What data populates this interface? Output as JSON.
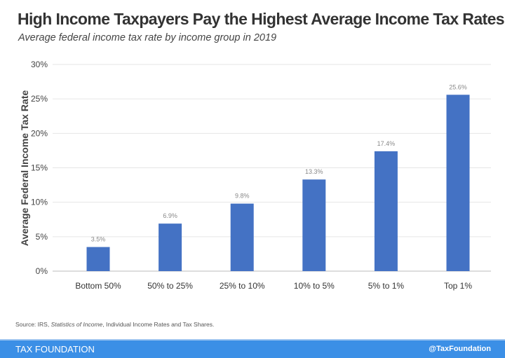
{
  "title": "High Income Taxpayers Pay the Highest Average Income Tax Rates",
  "subtitle": "Average federal income tax rate by income group in 2019",
  "source": {
    "prefix": "Source: IRS, ",
    "italic": "Statistics of Income",
    "suffix": ", Individual Income Rates and Tax Shares."
  },
  "footer": {
    "brand": "TAX FOUNDATION",
    "handle": "@TaxFoundation",
    "color": "#3b8fe6"
  },
  "chart_data": {
    "type": "bar",
    "categories": [
      "Bottom 50%",
      "50% to 25%",
      "25% to 10%",
      "10% to 5%",
      "5% to 1%",
      "Top 1%"
    ],
    "values": [
      3.5,
      6.9,
      9.8,
      13.3,
      17.4,
      25.6
    ],
    "data_labels": [
      "3.5%",
      "6.9%",
      "9.8%",
      "13.3%",
      "17.4%",
      "25.6%"
    ],
    "ylabel": "Average Federal Income Tax Rate",
    "xlabel": "",
    "ylim": [
      0,
      30
    ],
    "yticks": [
      "0%",
      "5%",
      "10%",
      "15%",
      "20%",
      "25%",
      "30%"
    ],
    "grid": true,
    "bar_color": "#4472c4"
  }
}
